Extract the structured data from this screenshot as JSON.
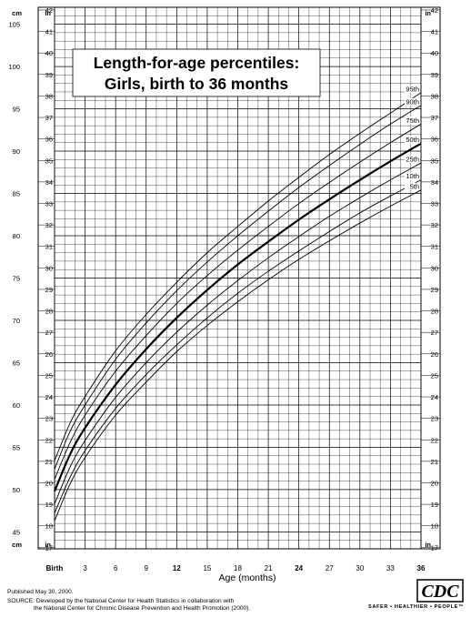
{
  "chart_data": {
    "type": "line",
    "title": "Length-for-age percentiles:",
    "subtitle": "Girls, birth to 36 months",
    "xlabel": "Age (months)",
    "left_unit": "cm",
    "right_unit": "in",
    "xlim": [
      0,
      36
    ],
    "ylim_cm": [
      43,
      107
    ],
    "grid": true,
    "x_ticks": [
      {
        "value": 0,
        "label": "Birth"
      },
      {
        "value": 3,
        "label": "3"
      },
      {
        "value": 6,
        "label": "6"
      },
      {
        "value": 9,
        "label": "9"
      },
      {
        "value": 12,
        "label": "12"
      },
      {
        "value": 15,
        "label": "15"
      },
      {
        "value": 18,
        "label": "18"
      },
      {
        "value": 21,
        "label": "21"
      },
      {
        "value": 24,
        "label": "24"
      },
      {
        "value": 27,
        "label": "27"
      },
      {
        "value": 30,
        "label": "30"
      },
      {
        "value": 33,
        "label": "33"
      },
      {
        "value": 36,
        "label": "36"
      }
    ],
    "bold_x_ticks": [
      0,
      12,
      24,
      36
    ],
    "cm_ticks": [
      45,
      50,
      55,
      60,
      65,
      70,
      75,
      80,
      85,
      90,
      95,
      100,
      105
    ],
    "in_ticks": [
      17,
      18,
      19,
      20,
      21,
      22,
      23,
      24,
      25,
      26,
      27,
      28,
      29,
      30,
      31,
      32,
      33,
      34,
      35,
      36,
      37,
      38,
      39,
      40,
      41,
      42
    ],
    "x": [
      0,
      1.5,
      3,
      6,
      9,
      12,
      15,
      18,
      21,
      24,
      27,
      30,
      33,
      36
    ],
    "series": [
      {
        "name": "95th",
        "values": [
          53.4,
          57.8,
          61.0,
          66.4,
          70.7,
          74.5,
          78.0,
          81.1,
          84.1,
          86.9,
          89.6,
          92.1,
          94.5,
          96.9
        ]
      },
      {
        "name": "90th",
        "values": [
          52.4,
          56.8,
          60.0,
          65.4,
          69.7,
          73.5,
          76.9,
          80.0,
          82.9,
          85.7,
          88.3,
          90.8,
          93.2,
          95.4
        ]
      },
      {
        "name": "75th",
        "values": [
          51.2,
          55.5,
          58.8,
          64.0,
          68.2,
          72.0,
          75.3,
          78.3,
          81.1,
          83.8,
          86.3,
          88.7,
          91.0,
          93.2
        ]
      },
      {
        "name": "50th",
        "values": [
          49.8,
          54.1,
          57.3,
          62.4,
          66.6,
          70.3,
          73.6,
          76.6,
          79.3,
          81.9,
          84.3,
          86.6,
          88.8,
          90.9
        ]
      },
      {
        "name": "25th",
        "values": [
          48.3,
          52.6,
          55.8,
          60.9,
          65.0,
          68.6,
          71.8,
          74.7,
          77.4,
          79.9,
          82.3,
          84.5,
          86.6,
          88.6
        ]
      },
      {
        "name": "10th",
        "values": [
          47.2,
          51.4,
          54.6,
          59.6,
          63.6,
          67.1,
          70.3,
          73.2,
          75.8,
          78.2,
          80.5,
          82.7,
          84.7,
          86.6
        ]
      },
      {
        "name": "5th",
        "values": [
          46.3,
          50.6,
          53.8,
          58.8,
          62.7,
          66.3,
          69.4,
          72.2,
          74.8,
          77.2,
          79.4,
          81.5,
          83.5,
          85.4
        ]
      }
    ]
  },
  "footer": {
    "published": "Published May 30, 2000.",
    "source_line1": "SOURCE: Developed by the National Center for Health Statistics in collaboration with",
    "source_line2": "the National Center for Chronic Disease Prevention and Health Promotion (2000).",
    "logo_text": "CDC",
    "tagline": "SAFER • HEALTHIER • PEOPLE™"
  }
}
